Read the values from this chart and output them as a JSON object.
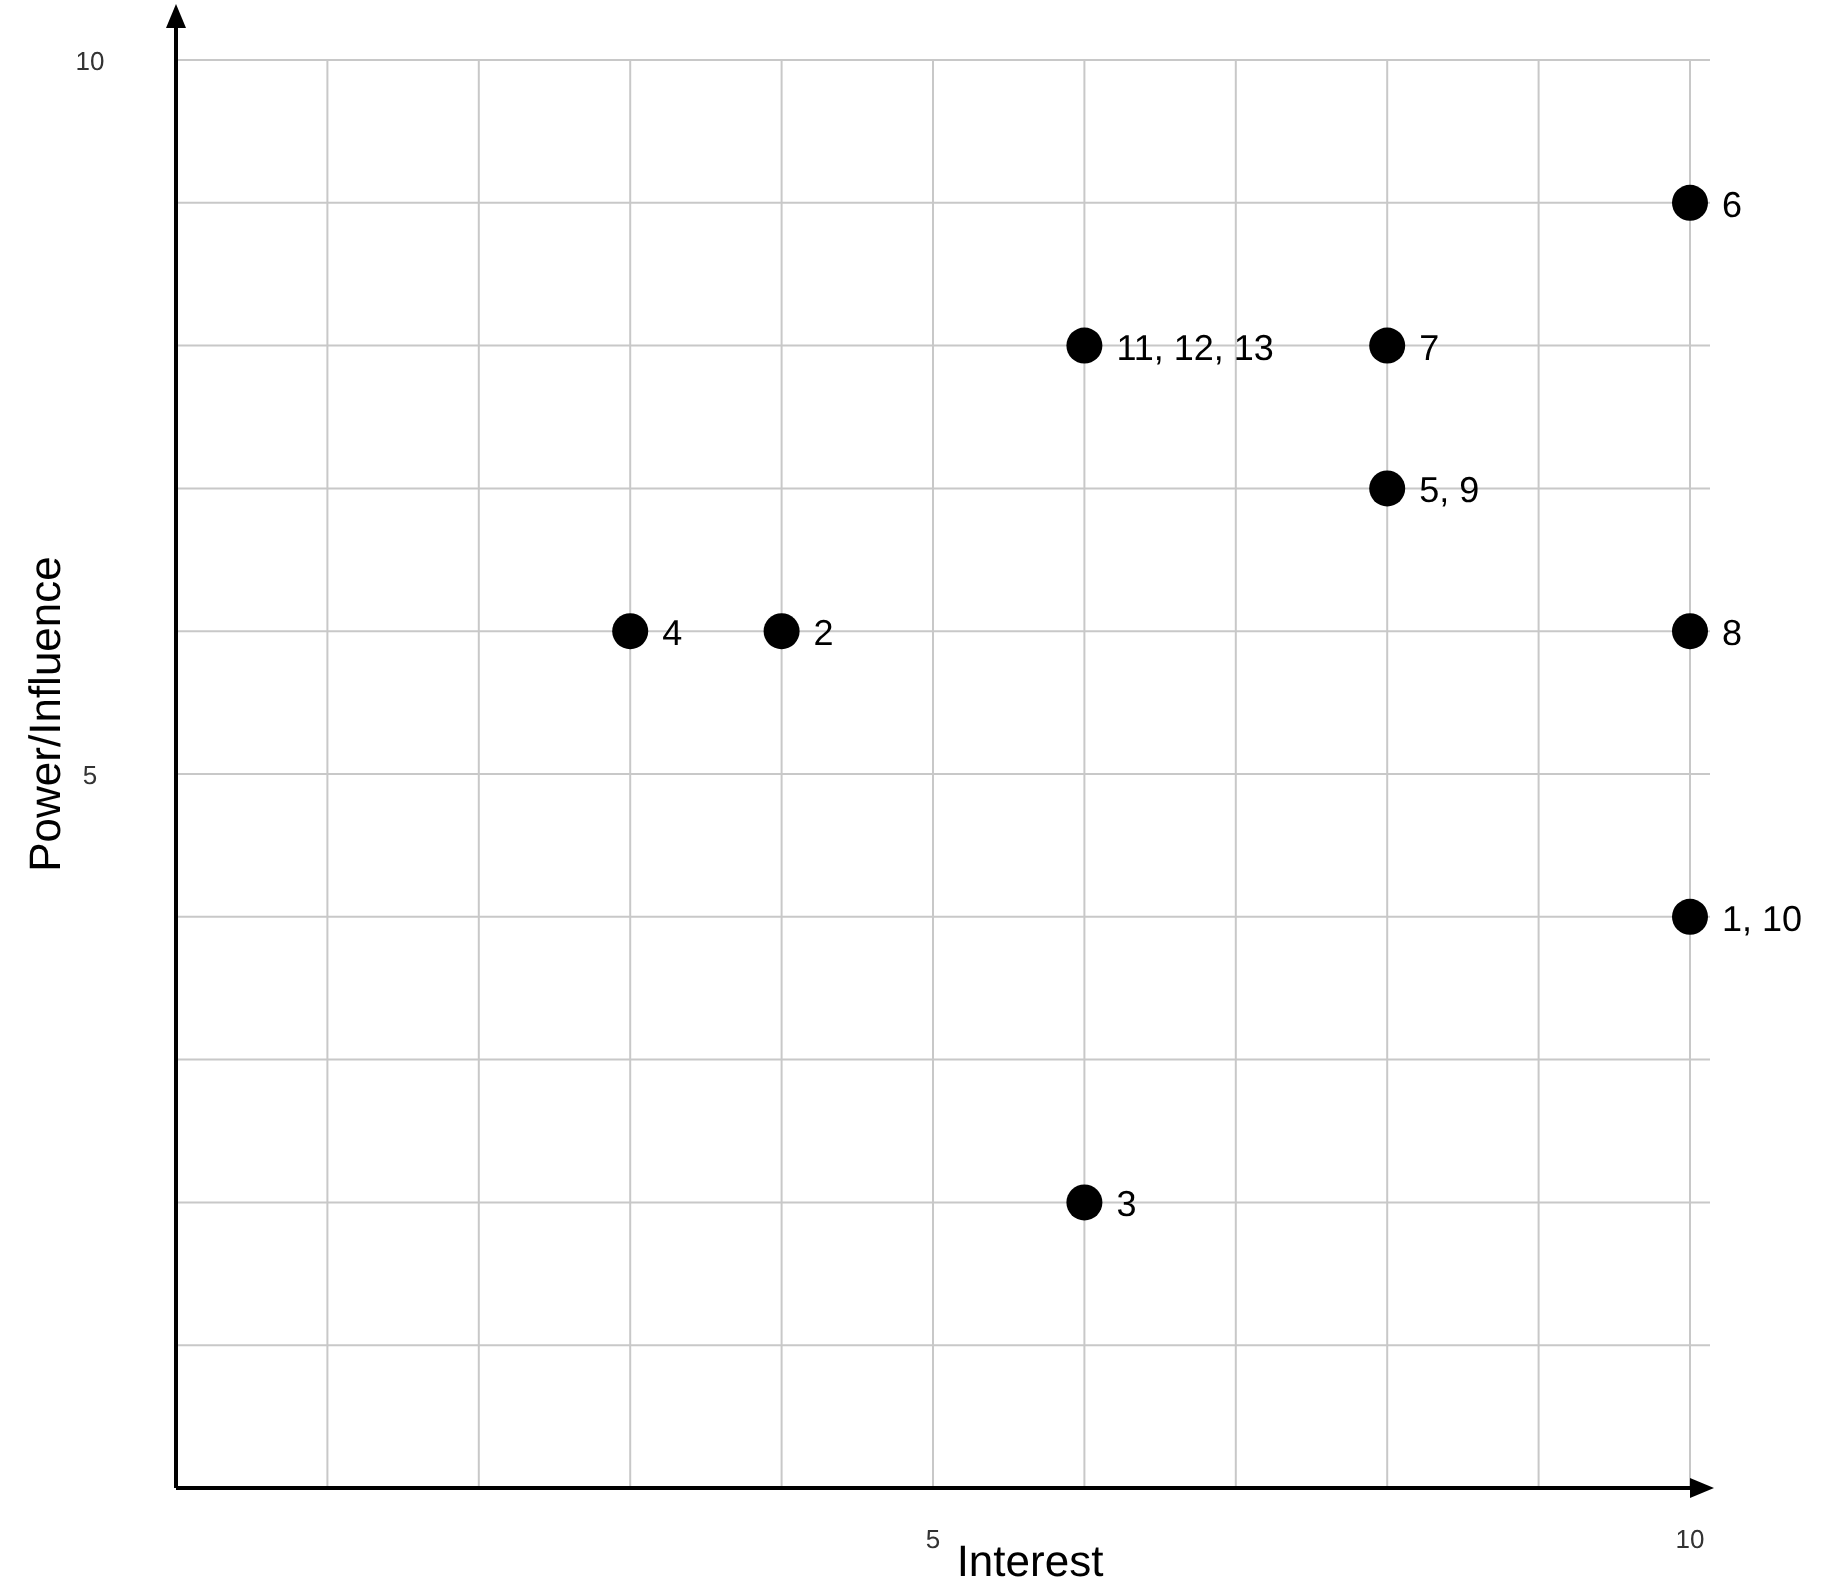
{
  "chart_data": {
    "type": "scatter",
    "xlabel": "Interest",
    "ylabel": "Power/Influence",
    "xlim": [
      0,
      10
    ],
    "ylim": [
      0,
      10
    ],
    "xticks": [
      {
        "value": 0,
        "label": null
      },
      {
        "value": 1,
        "label": null
      },
      {
        "value": 2,
        "label": null
      },
      {
        "value": 3,
        "label": null
      },
      {
        "value": 4,
        "label": null
      },
      5,
      {
        "value": 6,
        "label": null
      },
      {
        "value": 7,
        "label": null
      },
      {
        "value": 8,
        "label": null
      },
      {
        "value": 9,
        "label": null
      },
      10
    ],
    "yticks": [
      {
        "value": 0,
        "label": null
      },
      {
        "value": 1,
        "label": null
      },
      {
        "value": 2,
        "label": null
      },
      {
        "value": 3,
        "label": null
      },
      {
        "value": 4,
        "label": null
      },
      5,
      {
        "value": 6,
        "label": null
      },
      {
        "value": 7,
        "label": null
      },
      {
        "value": 8,
        "label": null
      },
      {
        "value": 9,
        "label": null
      },
      10
    ],
    "grid": true,
    "marker": "circle",
    "series": [
      {
        "color": "#000000",
        "x": [
          3,
          4,
          6,
          8,
          8,
          10,
          10,
          10,
          6
        ],
        "values": [
          6,
          6,
          8,
          8,
          7,
          9,
          6,
          4,
          2
        ]
      }
    ],
    "annotations": [
      {
        "text": "4",
        "x": 3,
        "y": 6
      },
      {
        "text": "2",
        "x": 4,
        "y": 6
      },
      {
        "text": "11, 12, 13",
        "x": 6,
        "y": 8
      },
      {
        "text": "7",
        "x": 8,
        "y": 8
      },
      {
        "text": "5, 9",
        "x": 8,
        "y": 7
      },
      {
        "text": "6",
        "x": 10,
        "y": 9
      },
      {
        "text": "8",
        "x": 10,
        "y": 6
      },
      {
        "text": "1, 10",
        "x": 10,
        "y": 4
      },
      {
        "text": "3",
        "x": 6,
        "y": 2
      }
    ]
  }
}
